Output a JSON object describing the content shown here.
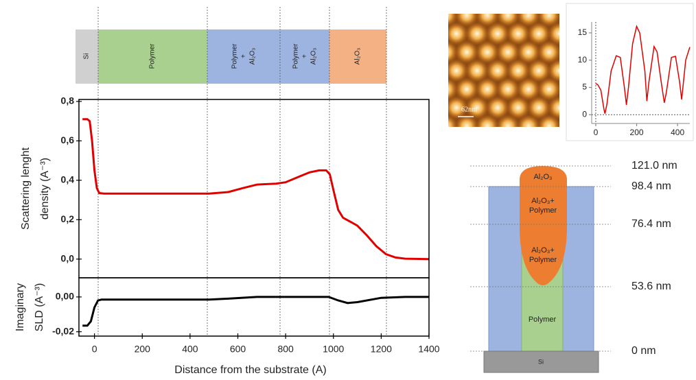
{
  "chart_data": [
    {
      "type": "line",
      "y_label": [
        "Scattering lenght",
        "density  (A⁻³)"
      ],
      "x": [
        -50,
        -30,
        -20,
        -10,
        0,
        10,
        20,
        40,
        200,
        480,
        560,
        620,
        680,
        760,
        800,
        860,
        900,
        940,
        970,
        985,
        1000,
        1020,
        1040,
        1070,
        1100,
        1140,
        1180,
        1220,
        1260,
        1300,
        1400
      ],
      "series": [
        {
          "color": "#e00000",
          "values": [
            0.71,
            0.71,
            0.7,
            0.6,
            0.45,
            0.36,
            0.335,
            0.332,
            0.332,
            0.332,
            0.34,
            0.36,
            0.378,
            0.383,
            0.39,
            0.42,
            0.44,
            0.45,
            0.45,
            0.43,
            0.35,
            0.25,
            0.21,
            0.19,
            0.17,
            0.12,
            0.065,
            0.025,
            0.008,
            0.002,
            0.0
          ]
        }
      ],
      "xlim": [
        -65,
        1400
      ],
      "ylim": [
        -0.095,
        0.81
      ],
      "yticks": [
        {
          "value": 0,
          "label": "0,0"
        },
        {
          "value": 0.2,
          "label": "0,2"
        },
        {
          "value": 0.4,
          "label": "0,4"
        },
        {
          "value": 0.6,
          "label": "0,6"
        },
        {
          "value": 0.8,
          "label": "0,8"
        }
      ]
    },
    {
      "type": "line",
      "y_label": [
        "Imaginary",
        "SLD  (A⁻³)"
      ],
      "x_label": "Distance from the substrate (A)",
      "x": [
        -50,
        -30,
        -15,
        0,
        15,
        30,
        480,
        560,
        680,
        980,
        1020,
        1060,
        1100,
        1200,
        1300,
        1400
      ],
      "series": [
        {
          "color": "#000000",
          "values": [
            -0.0165,
            -0.0165,
            -0.014,
            -0.006,
            -0.002,
            -0.0015,
            -0.0015,
            -0.001,
            0,
            0,
            -0.002,
            -0.0035,
            -0.003,
            -0.0005,
            0,
            0
          ]
        }
      ],
      "xlim": [
        -65,
        1400
      ],
      "ylim": [
        -0.0225,
        0.011
      ],
      "xticks": [
        0,
        200,
        400,
        600,
        800,
        1000,
        1200,
        1400
      ],
      "yticks": [
        {
          "value": 0,
          "label": "0,00"
        },
        {
          "value": -0.02,
          "label": "-0,02"
        }
      ]
    },
    {
      "type": "line",
      "x": [
        0,
        10,
        25,
        40,
        45,
        55,
        75,
        100,
        120,
        140,
        150,
        160,
        180,
        200,
        215,
        240,
        250,
        260,
        285,
        300,
        320,
        335,
        345,
        370,
        390,
        410,
        420,
        440,
        460
      ],
      "series": [
        {
          "color": "#e00000",
          "values": [
            5.7,
            5.5,
            4.5,
            1,
            0.2,
            2,
            8,
            10.8,
            10.5,
            5,
            1.8,
            5,
            13,
            16.2,
            15,
            8,
            2.5,
            6,
            12.5,
            11.5,
            6,
            2.2,
            4,
            10.5,
            10.7,
            6,
            2.8,
            10,
            12.4
          ]
        }
      ],
      "xlim": [
        -20,
        460
      ],
      "ylim": [
        -1.6,
        17
      ],
      "xticks": [
        0,
        200,
        400
      ],
      "yticks": [
        0,
        5,
        10,
        15
      ]
    }
  ],
  "layers": [
    [
      "Si"
    ],
    [
      "Polymer"
    ],
    [
      "Polymer",
      "+",
      "Al₂O₃"
    ],
    [
      "Polymer",
      "+",
      "Al₂O₃"
    ],
    [
      "Al₂O₃"
    ]
  ],
  "afm": {
    "scale_label": "62nm"
  },
  "schematic": {
    "levels": [
      "121.0 nm",
      "98.4 nm",
      "76.4 nm",
      "53.6 nm",
      "0 nm"
    ],
    "regions": [
      [
        "Al₂O₃"
      ],
      [
        "Al₂O₃+",
        "Polymer"
      ],
      [
        "Al₂O₃+",
        "Polymer"
      ],
      [
        "Polymer"
      ],
      [
        "Si"
      ]
    ]
  }
}
